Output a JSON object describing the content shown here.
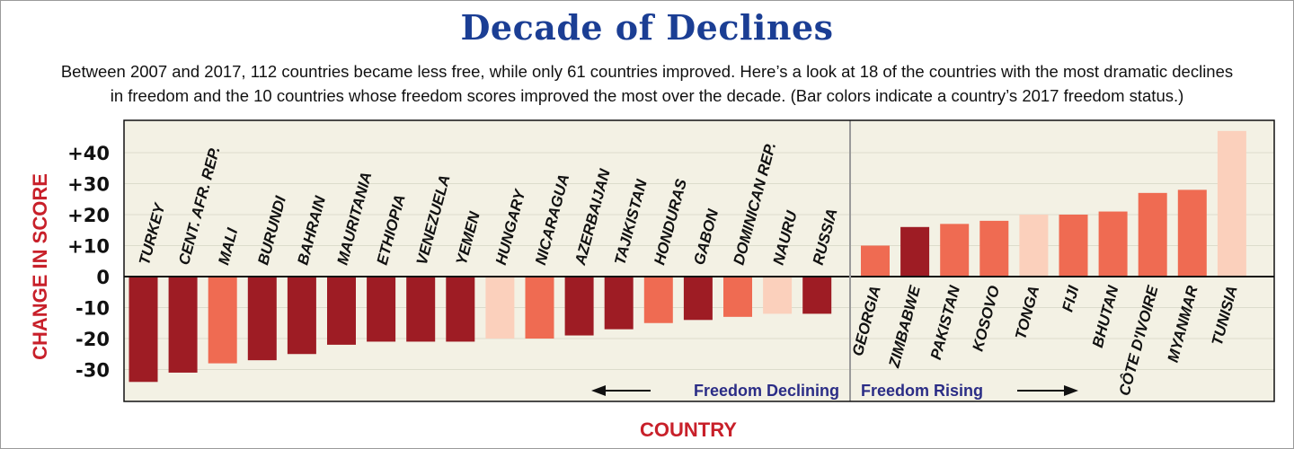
{
  "chart_data": {
    "type": "bar",
    "title": "Decade of Declines",
    "subtitle_line1": "Between 2007 and 2017, 112 countries became less free, while only 61 countries improved. Here’s a look at 18 of the countries with the most dramatic declines",
    "subtitle_line2": "in freedom and the 10 countries whose freedom scores improved the most over the decade. (Bar colors indicate a country’s 2017 freedom status.)",
    "xlabel": "COUNTRY",
    "ylabel": "CHANGE IN SCORE",
    "ylim": [
      -40,
      50
    ],
    "yticks": [
      {
        "value": 40,
        "label": "+40"
      },
      {
        "value": 30,
        "label": "+30"
      },
      {
        "value": 20,
        "label": "+20"
      },
      {
        "value": 10,
        "label": "+10"
      },
      {
        "value": 0,
        "label": "0"
      },
      {
        "value": -10,
        "label": "-10"
      },
      {
        "value": -20,
        "label": "-20"
      },
      {
        "value": -30,
        "label": "-30"
      }
    ],
    "grid": true,
    "colors": {
      "dark": "#9e1c24",
      "medium": "#ef6b52",
      "light": "#fbd0bc",
      "background": "#f3f1e4"
    },
    "groups": [
      {
        "annotation": "Freedom Declining",
        "bars": [
          {
            "category": "TURKEY",
            "value": -34,
            "shade": "dark"
          },
          {
            "category": "CENT. AFR. REP.",
            "value": -31,
            "shade": "dark"
          },
          {
            "category": "MALI",
            "value": -28,
            "shade": "medium"
          },
          {
            "category": "BURUNDI",
            "value": -27,
            "shade": "dark"
          },
          {
            "category": "BAHRAIN",
            "value": -25,
            "shade": "dark"
          },
          {
            "category": "MAURITANIA",
            "value": -22,
            "shade": "dark"
          },
          {
            "category": "ETHIOPIA",
            "value": -21,
            "shade": "dark"
          },
          {
            "category": "VENEZUELA",
            "value": -21,
            "shade": "dark"
          },
          {
            "category": "YEMEN",
            "value": -21,
            "shade": "dark"
          },
          {
            "category": "HUNGARY",
            "value": -20,
            "shade": "light"
          },
          {
            "category": "NICARAGUA",
            "value": -20,
            "shade": "medium"
          },
          {
            "category": "AZERBAIJAN",
            "value": -19,
            "shade": "dark"
          },
          {
            "category": "TAJIKISTAN",
            "value": -17,
            "shade": "dark"
          },
          {
            "category": "HONDURAS",
            "value": -15,
            "shade": "medium"
          },
          {
            "category": "GABON",
            "value": -14,
            "shade": "dark"
          },
          {
            "category": "DOMINICAN REP.",
            "value": -13,
            "shade": "medium"
          },
          {
            "category": "NAURU",
            "value": -12,
            "shade": "light"
          },
          {
            "category": "RUSSIA",
            "value": -12,
            "shade": "dark"
          }
        ]
      },
      {
        "annotation": "Freedom Rising",
        "bars": [
          {
            "category": "GEORGIA",
            "value": 10,
            "shade": "medium"
          },
          {
            "category": "ZIMBABWE",
            "value": 16,
            "shade": "dark"
          },
          {
            "category": "PAKISTAN",
            "value": 17,
            "shade": "medium"
          },
          {
            "category": "KOSOVO",
            "value": 18,
            "shade": "medium"
          },
          {
            "category": "TONGA",
            "value": 20,
            "shade": "light"
          },
          {
            "category": "FIJI",
            "value": 20,
            "shade": "medium"
          },
          {
            "category": "BHUTAN",
            "value": 21,
            "shade": "medium"
          },
          {
            "category": "CÔTE D'IVOIRE",
            "value": 27,
            "shade": "medium"
          },
          {
            "category": "MYANMAR",
            "value": 28,
            "shade": "medium"
          },
          {
            "category": "TUNISIA",
            "value": 47,
            "shade": "light"
          }
        ]
      }
    ]
  }
}
